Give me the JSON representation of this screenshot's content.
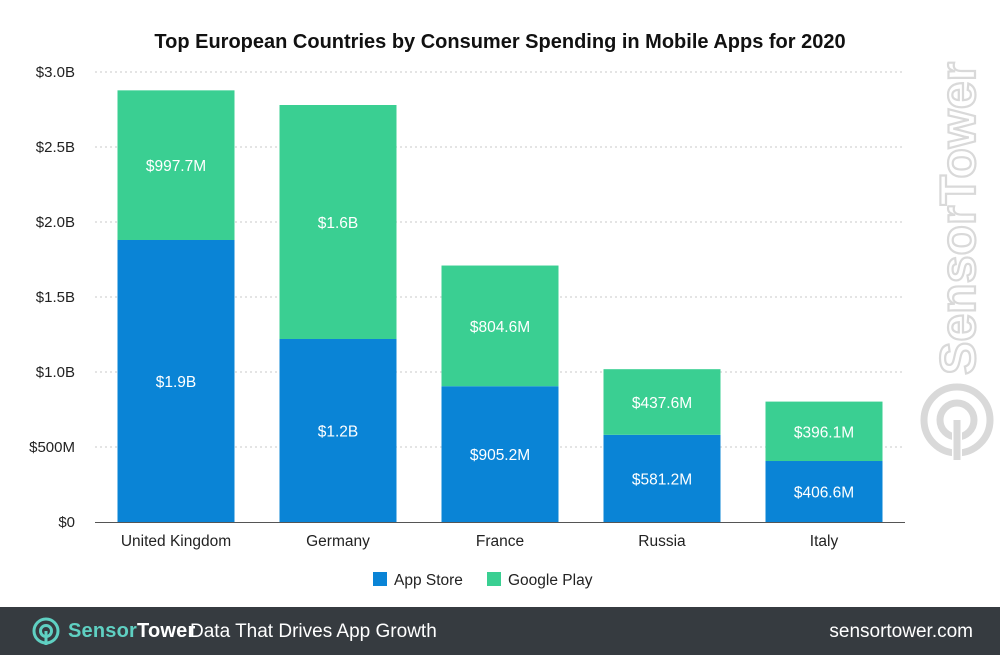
{
  "colors": {
    "app_store": "#0a84d6",
    "google_play": "#3acf92",
    "footer_bg": "#363b40",
    "brand_accent": "#5fd0c2"
  },
  "watermark": {
    "text": "SensorTower",
    "icon": "sensortower-logo-icon"
  },
  "footer": {
    "logo_icon": "sensortower-logo-icon",
    "brand_part1": "Sensor",
    "brand_part2": "Tower",
    "tagline": "Data That Drives App Growth",
    "site": "sensortower.com"
  },
  "chart_data": {
    "type": "bar",
    "stacked": true,
    "title": "Top European Countries by Consumer Spending in Mobile Apps for 2020",
    "xlabel": "",
    "ylabel": "",
    "categories": [
      "United Kingdom",
      "Germany",
      "France",
      "Russia",
      "Italy"
    ],
    "ylim": [
      0,
      3000
    ],
    "yticks": [
      {
        "value": 0,
        "label": "$0"
      },
      {
        "value": 500,
        "label": "$500M"
      },
      {
        "value": 1000,
        "label": "$1.0B"
      },
      {
        "value": 1500,
        "label": "$1.5B"
      },
      {
        "value": 2000,
        "label": "$2.0B"
      },
      {
        "value": 2500,
        "label": "$2.5B"
      },
      {
        "value": 3000,
        "label": "$3.0B"
      }
    ],
    "grid": true,
    "legend_position": "bottom-center",
    "series": [
      {
        "name": "App Store",
        "color": "#0a84d6",
        "values": [
          1880,
          1220,
          905.2,
          581.2,
          406.6
        ],
        "labels": [
          "$1.9B",
          "$1.2B",
          "$905.2M",
          "$581.2M",
          "$406.6M"
        ]
      },
      {
        "name": "Google Play",
        "color": "#3acf92",
        "values": [
          997.7,
          1560,
          804.6,
          437.6,
          396.1
        ],
        "labels": [
          "$997.7M",
          "$1.6B",
          "$804.6M",
          "$437.6M",
          "$396.1M"
        ]
      }
    ]
  }
}
